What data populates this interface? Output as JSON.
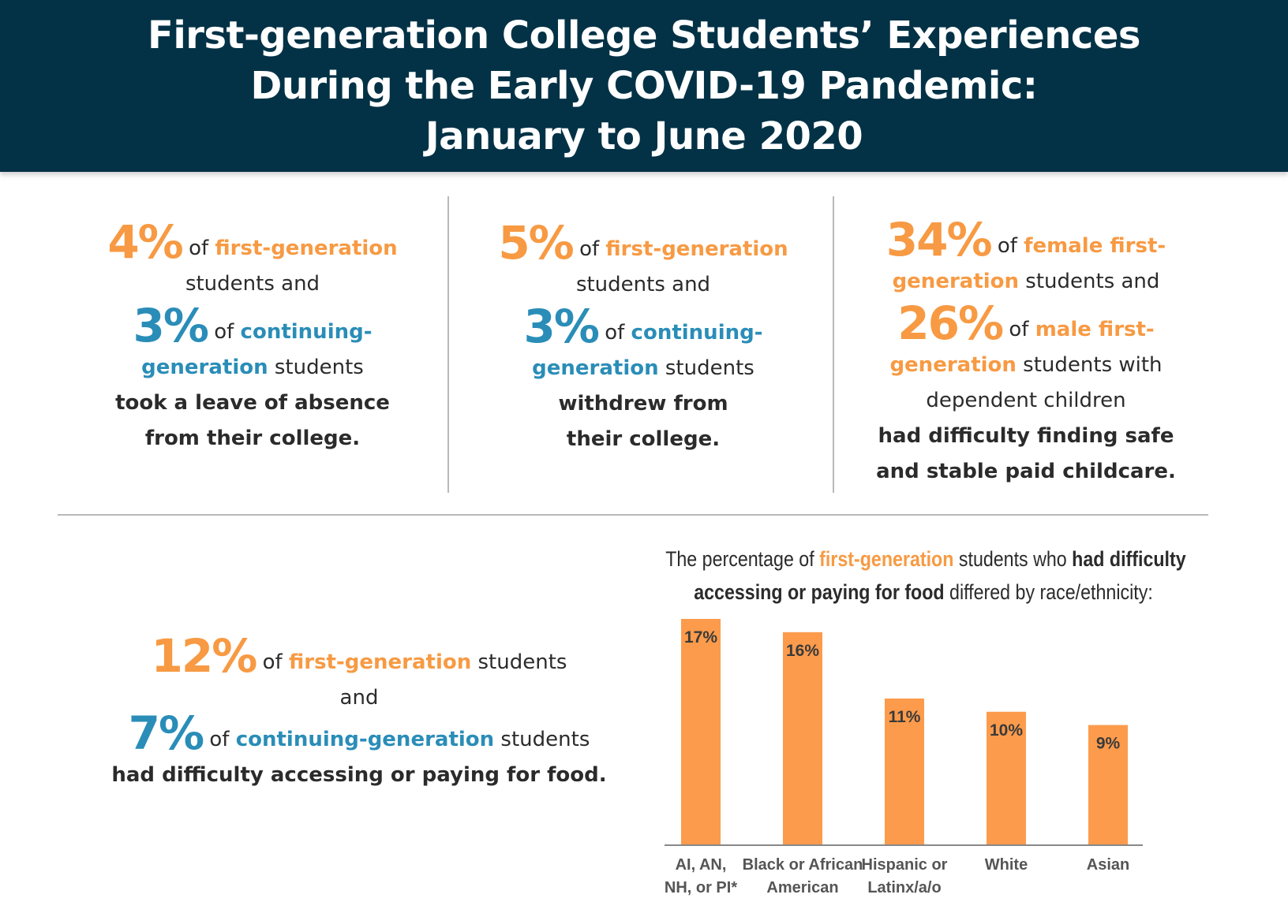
{
  "header": {
    "title_line1": "First-generation College Students’ Experiences",
    "title_line2": "During the Early COVID-19 Pandemic:",
    "title_line3": "January to June 2020"
  },
  "stat1": {
    "pct_first": "4%",
    "of1": " of ",
    "first_gen": "first-generation",
    "students_and": "students and",
    "pct_cont": "3%",
    "of2": " of ",
    "continuing_a": "continuing-",
    "continuing_b": "generation",
    "students": " students",
    "outcome_line1": "took a leave of absence",
    "outcome_line2": "from their college."
  },
  "stat2": {
    "pct_first": "5%",
    "of1": " of ",
    "first_gen": "first-generation",
    "students_and": "students and",
    "pct_cont": "3%",
    "of2": " of ",
    "continuing_a": "continuing-",
    "continuing_b": "generation",
    "students": " students",
    "outcome_line1": "withdrew from",
    "outcome_line2": "their college."
  },
  "stat3": {
    "pct_female": "34%",
    "of1": " of ",
    "female_a": "female first-",
    "female_b": "generation",
    "students_and": " students and",
    "pct_male": "26%",
    "of2": " of ",
    "male_a": "male first-",
    "male_b": "generation",
    "students_with": " students with",
    "dependent": "dependent children",
    "outcome_line1": "had difficulty finding safe",
    "outcome_line2": "and stable paid childcare."
  },
  "stat4": {
    "pct_first": "12%",
    "of1": " of ",
    "first_gen": "first-generation",
    "students1": " students",
    "and": "and",
    "pct_cont": "7%",
    "of2": " of ",
    "cont_gen": "continuing-generation",
    "students2": " students",
    "outcome": "had difficulty accessing or paying for food."
  },
  "chart_title": {
    "p1": "The percentage of ",
    "p2": "first-generation",
    "p3": " students who ",
    "p4": "had difficulty",
    "p5": "accessing or paying for food",
    "p6": " differed by race/ethnicity:"
  },
  "colors": {
    "header_bg": "#033246",
    "orange": "#f79a43",
    "blue": "#2a8db8",
    "bar": "#fd9b4c"
  },
  "chart_data": {
    "type": "bar",
    "title": "The percentage of first-generation students who had difficulty accessing or paying for food differed by race/ethnicity:",
    "categories": [
      [
        "AI, AN,",
        "NH, or PI*"
      ],
      [
        "Black or African",
        "American"
      ],
      [
        "Hispanic or",
        "Latinx/a/o"
      ],
      [
        "White"
      ],
      [
        "Asian"
      ]
    ],
    "values": [
      17,
      16,
      11,
      10,
      9
    ],
    "value_labels": [
      "17%",
      "16%",
      "11%",
      "10%",
      "9%"
    ],
    "ylim": [
      0,
      17
    ],
    "grid": false,
    "xlabel": "",
    "ylabel": ""
  }
}
